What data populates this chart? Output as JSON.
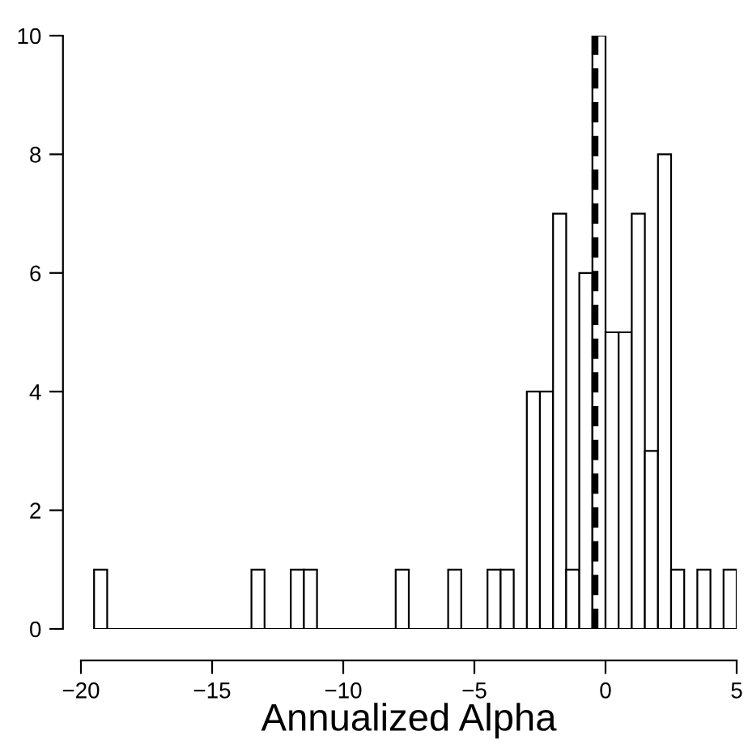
{
  "chart_data": {
    "type": "histogram",
    "xlabel": "Annualized Alpha",
    "bins": [
      -19.5,
      -19,
      -18.5,
      -18,
      -17.5,
      -17,
      -16.5,
      -16,
      -15.5,
      -15,
      -14.5,
      -14,
      -13.5,
      -13,
      -12.5,
      -12,
      -11.5,
      -11,
      -10.5,
      -10,
      -9.5,
      -9,
      -8.5,
      -8,
      -7.5,
      -7,
      -6.5,
      -6,
      -5.5,
      -5,
      -4.5,
      -4,
      -3.5,
      -3,
      -2.5,
      -2,
      -1.5,
      -1,
      -0.5,
      0,
      0.5,
      1,
      1.5,
      2,
      2.5,
      3,
      3.5,
      4,
      4.5,
      5
    ],
    "values": [
      1,
      0,
      0,
      0,
      0,
      0,
      0,
      0,
      0,
      0,
      0,
      0,
      1,
      0,
      0,
      1,
      1,
      0,
      0,
      0,
      0,
      0,
      0,
      1,
      0,
      0,
      0,
      1,
      0,
      0,
      1,
      1,
      0,
      4,
      4,
      7,
      1,
      6,
      10,
      5,
      5,
      7,
      3,
      8,
      1,
      0,
      1,
      0,
      1
    ],
    "color": "#ffffff",
    "xlim": [
      -20,
      5
    ],
    "xticks": [
      {
        "value": -20,
        "label": "−20"
      },
      {
        "value": -15,
        "label": "−15"
      },
      {
        "value": -10,
        "label": "−10"
      },
      {
        "value": -5,
        "label": "−5"
      },
      0,
      5
    ],
    "ylim": [
      0,
      10
    ],
    "yticks": [
      0,
      2,
      4,
      6,
      8,
      10
    ],
    "ref_lines": [
      {
        "axis": "x",
        "value": -0.4,
        "color": "#000000",
        "line_style": "dashed"
      }
    ],
    "grid": false
  }
}
